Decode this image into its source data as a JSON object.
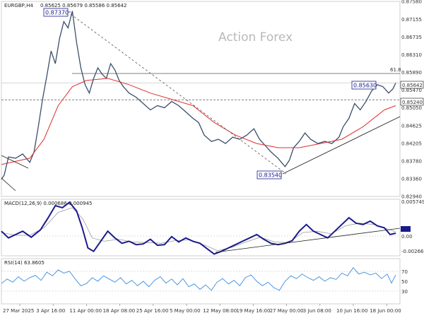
{
  "header": {
    "symbol_label": "EURGBP,H4",
    "ohlc_values": "0.85625 0.85679 0.85586 0.85642",
    "watermark": "Action Forex"
  },
  "colors": {
    "candle": "#3b4f6b",
    "ma": "#e03030",
    "macd_line": "#1a1a8c",
    "signal_line": "#9a9a9a",
    "rsi_line": "#3a8de0",
    "trendline": "#222222",
    "callout_border": "#1a1a8c"
  },
  "chart_data": [
    {
      "panel": "price",
      "type": "line",
      "title": "",
      "y_ticks": [
        "0.87580",
        "0.87155",
        "0.86735",
        "0.86310",
        "0.85890",
        "0.85470",
        "0.85050",
        "0.84625",
        "0.84205",
        "0.83780",
        "0.83360",
        "0.82940"
      ],
      "ylim": [
        0.8294,
        0.8758
      ],
      "x_tick_labels": [
        "27 Mar 2025",
        "3 Apr 16:00",
        "11 Apr 00:00",
        "18 Apr 08:00",
        "25 Apr 16:00",
        "5 May 00:00",
        "12 May 08:00",
        "19 May 16:00",
        "27 May 00:00",
        "3 Jun 08:00",
        "10 Jun 16:00",
        "18 Jun 00:00"
      ],
      "price_path": [
        [
          0,
          0.8335
        ],
        [
          4,
          0.8345
        ],
        [
          10,
          0.8388
        ],
        [
          20,
          0.8385
        ],
        [
          30,
          0.8395
        ],
        [
          40,
          0.8375
        ],
        [
          46,
          0.84
        ],
        [
          52,
          0.846
        ],
        [
          58,
          0.8525
        ],
        [
          64,
          0.858
        ],
        [
          70,
          0.864
        ],
        [
          76,
          0.861
        ],
        [
          82,
          0.867
        ],
        [
          88,
          0.871
        ],
        [
          94,
          0.8695
        ],
        [
          100,
          0.8735
        ],
        [
          106,
          0.866
        ],
        [
          112,
          0.86
        ],
        [
          118,
          0.856
        ],
        [
          124,
          0.854
        ],
        [
          130,
          0.8575
        ],
        [
          136,
          0.86
        ],
        [
          142,
          0.8585
        ],
        [
          148,
          0.8575
        ],
        [
          154,
          0.861
        ],
        [
          160,
          0.8595
        ],
        [
          166,
          0.857
        ],
        [
          172,
          0.8555
        ],
        [
          180,
          0.854
        ],
        [
          190,
          0.853
        ],
        [
          200,
          0.8515
        ],
        [
          210,
          0.85
        ],
        [
          220,
          0.851
        ],
        [
          230,
          0.8505
        ],
        [
          240,
          0.852
        ],
        [
          250,
          0.851
        ],
        [
          260,
          0.8495
        ],
        [
          270,
          0.848
        ],
        [
          278,
          0.847
        ],
        [
          286,
          0.844
        ],
        [
          296,
          0.8425
        ],
        [
          306,
          0.843
        ],
        [
          316,
          0.842
        ],
        [
          326,
          0.8435
        ],
        [
          336,
          0.843
        ],
        [
          346,
          0.844
        ],
        [
          356,
          0.8455
        ],
        [
          364,
          0.843
        ],
        [
          372,
          0.8415
        ],
        [
          380,
          0.84
        ],
        [
          390,
          0.8385
        ],
        [
          400,
          0.8365
        ],
        [
          406,
          0.838
        ],
        [
          412,
          0.841
        ],
        [
          420,
          0.8425
        ],
        [
          428,
          0.8445
        ],
        [
          436,
          0.843
        ],
        [
          446,
          0.842
        ],
        [
          456,
          0.8425
        ],
        [
          466,
          0.842
        ],
        [
          476,
          0.8435
        ],
        [
          482,
          0.846
        ],
        [
          490,
          0.848
        ],
        [
          498,
          0.8515
        ],
        [
          506,
          0.85
        ],
        [
          514,
          0.852
        ],
        [
          522,
          0.8545
        ],
        [
          530,
          0.856
        ],
        [
          538,
          0.8555
        ],
        [
          546,
          0.854
        ],
        [
          552,
          0.855
        ],
        [
          556,
          0.8564
        ]
      ],
      "ma_path": [
        [
          0,
          0.837
        ],
        [
          40,
          0.8385
        ],
        [
          60,
          0.843
        ],
        [
          80,
          0.851
        ],
        [
          100,
          0.8555
        ],
        [
          120,
          0.857
        ],
        [
          150,
          0.8575
        ],
        [
          180,
          0.856
        ],
        [
          210,
          0.854
        ],
        [
          240,
          0.8525
        ],
        [
          270,
          0.851
        ],
        [
          300,
          0.847
        ],
        [
          330,
          0.844
        ],
        [
          360,
          0.842
        ],
        [
          390,
          0.841
        ],
        [
          420,
          0.841
        ],
        [
          450,
          0.842
        ],
        [
          480,
          0.843
        ],
        [
          510,
          0.846
        ],
        [
          540,
          0.85
        ],
        [
          556,
          0.851
        ]
      ],
      "annotations": [
        {
          "label": "0.87370",
          "value": 0.8737
        },
        {
          "label": "0.85630",
          "value": 0.8563
        },
        {
          "label": "0.85240",
          "value": 0.8524
        },
        {
          "label": "0.83540",
          "value": 0.8354
        },
        {
          "label": "0.85642",
          "value": 0.85642
        }
      ],
      "fib_label": "61.8"
    },
    {
      "panel": "macd",
      "type": "line",
      "title": "MACD(12,26,9) 0.000686 0.000945",
      "y_ticks": [
        "0.005749",
        "0.00",
        "-0.002663"
      ],
      "ylim": [
        -0.002663,
        0.005749
      ],
      "macd_path": [
        [
          0,
          0.001
        ],
        [
          10,
          0.0
        ],
        [
          20,
          0.0005
        ],
        [
          30,
          0.001
        ],
        [
          42,
          0.0001
        ],
        [
          55,
          0.0012
        ],
        [
          66,
          0.003
        ],
        [
          76,
          0.0048
        ],
        [
          86,
          0.0045
        ],
        [
          96,
          0.0053
        ],
        [
          106,
          0.004
        ],
        [
          114,
          0.0015
        ],
        [
          122,
          -0.0015
        ],
        [
          130,
          -0.002
        ],
        [
          140,
          -0.0005
        ],
        [
          150,
          0.001
        ],
        [
          160,
          0.0
        ],
        [
          170,
          -0.0008
        ],
        [
          180,
          -0.0005
        ],
        [
          190,
          -0.001
        ],
        [
          200,
          -0.0009
        ],
        [
          210,
          -0.0002
        ],
        [
          220,
          -0.0011
        ],
        [
          230,
          -0.001
        ],
        [
          240,
          0.0002
        ],
        [
          250,
          -0.0006
        ],
        [
          260,
          0.0
        ],
        [
          270,
          -0.0005
        ],
        [
          280,
          -0.0008
        ],
        [
          290,
          -0.0016
        ],
        [
          300,
          -0.0024
        ],
        [
          310,
          -0.002
        ],
        [
          320,
          -0.0015
        ],
        [
          330,
          -0.001
        ],
        [
          340,
          -0.0005
        ],
        [
          350,
          0.0
        ],
        [
          360,
          0.0005
        ],
        [
          370,
          -0.0002
        ],
        [
          380,
          -0.0008
        ],
        [
          390,
          -0.001
        ],
        [
          400,
          -0.0008
        ],
        [
          410,
          -0.0004
        ],
        [
          420,
          0.001
        ],
        [
          430,
          0.002
        ],
        [
          440,
          0.001
        ],
        [
          450,
          0.0005
        ],
        [
          460,
          0.0
        ],
        [
          470,
          0.001
        ],
        [
          480,
          0.002
        ],
        [
          490,
          0.003
        ],
        [
          500,
          0.0022
        ],
        [
          510,
          0.002
        ],
        [
          520,
          0.0025
        ],
        [
          530,
          0.0018
        ],
        [
          540,
          0.0015
        ],
        [
          548,
          0.0005
        ],
        [
          556,
          0.0007
        ]
      ],
      "signal_path": [
        [
          0,
          0.0008
        ],
        [
          20,
          0.0004
        ],
        [
          40,
          0.0004
        ],
        [
          60,
          0.0015
        ],
        [
          80,
          0.0038
        ],
        [
          100,
          0.0045
        ],
        [
          115,
          0.0028
        ],
        [
          128,
          0.0
        ],
        [
          145,
          -0.0005
        ],
        [
          165,
          -0.0002
        ],
        [
          185,
          -0.0006
        ],
        [
          205,
          -0.0007
        ],
        [
          225,
          -0.0008
        ],
        [
          245,
          -0.0004
        ],
        [
          265,
          -0.0003
        ],
        [
          285,
          -0.001
        ],
        [
          305,
          -0.0019
        ],
        [
          325,
          -0.0014
        ],
        [
          345,
          -0.0006
        ],
        [
          365,
          0.0001
        ],
        [
          385,
          -0.0006
        ],
        [
          405,
          -0.0007
        ],
        [
          425,
          0.0008
        ],
        [
          445,
          0.001
        ],
        [
          465,
          0.0006
        ],
        [
          485,
          0.0018
        ],
        [
          505,
          0.0022
        ],
        [
          525,
          0.002
        ],
        [
          545,
          0.0013
        ],
        [
          556,
          0.0009
        ]
      ]
    },
    {
      "panel": "rsi",
      "type": "line",
      "title": "RSI(14) 63.8605",
      "y_ticks": [
        "70",
        "50",
        "30"
      ],
      "ylim": [
        0,
        100
      ],
      "rsi_path": [
        [
          0,
          45
        ],
        [
          8,
          55
        ],
        [
          16,
          48
        ],
        [
          24,
          60
        ],
        [
          32,
          50
        ],
        [
          40,
          58
        ],
        [
          48,
          63
        ],
        [
          56,
          52
        ],
        [
          64,
          70
        ],
        [
          72,
          62
        ],
        [
          80,
          75
        ],
        [
          88,
          68
        ],
        [
          96,
          72
        ],
        [
          104,
          55
        ],
        [
          112,
          40
        ],
        [
          120,
          45
        ],
        [
          128,
          58
        ],
        [
          136,
          50
        ],
        [
          144,
          62
        ],
        [
          152,
          55
        ],
        [
          160,
          48
        ],
        [
          168,
          58
        ],
        [
          176,
          44
        ],
        [
          184,
          52
        ],
        [
          192,
          40
        ],
        [
          200,
          50
        ],
        [
          208,
          38
        ],
        [
          216,
          52
        ],
        [
          224,
          60
        ],
        [
          232,
          46
        ],
        [
          240,
          55
        ],
        [
          248,
          42
        ],
        [
          256,
          56
        ],
        [
          264,
          38
        ],
        [
          272,
          44
        ],
        [
          280,
          32
        ],
        [
          288,
          42
        ],
        [
          296,
          30
        ],
        [
          304,
          48
        ],
        [
          312,
          56
        ],
        [
          320,
          44
        ],
        [
          328,
          52
        ],
        [
          336,
          40
        ],
        [
          344,
          58
        ],
        [
          352,
          64
        ],
        [
          360,
          50
        ],
        [
          368,
          40
        ],
        [
          376,
          48
        ],
        [
          384,
          36
        ],
        [
          392,
          30
        ],
        [
          400,
          50
        ],
        [
          408,
          62
        ],
        [
          416,
          56
        ],
        [
          424,
          66
        ],
        [
          432,
          58
        ],
        [
          440,
          52
        ],
        [
          448,
          60
        ],
        [
          456,
          50
        ],
        [
          464,
          58
        ],
        [
          472,
          54
        ],
        [
          480,
          68
        ],
        [
          488,
          62
        ],
        [
          496,
          80
        ],
        [
          504,
          66
        ],
        [
          512,
          70
        ],
        [
          520,
          64
        ],
        [
          528,
          68
        ],
        [
          536,
          56
        ],
        [
          544,
          66
        ],
        [
          550,
          46
        ],
        [
          556,
          63.86
        ]
      ]
    }
  ]
}
